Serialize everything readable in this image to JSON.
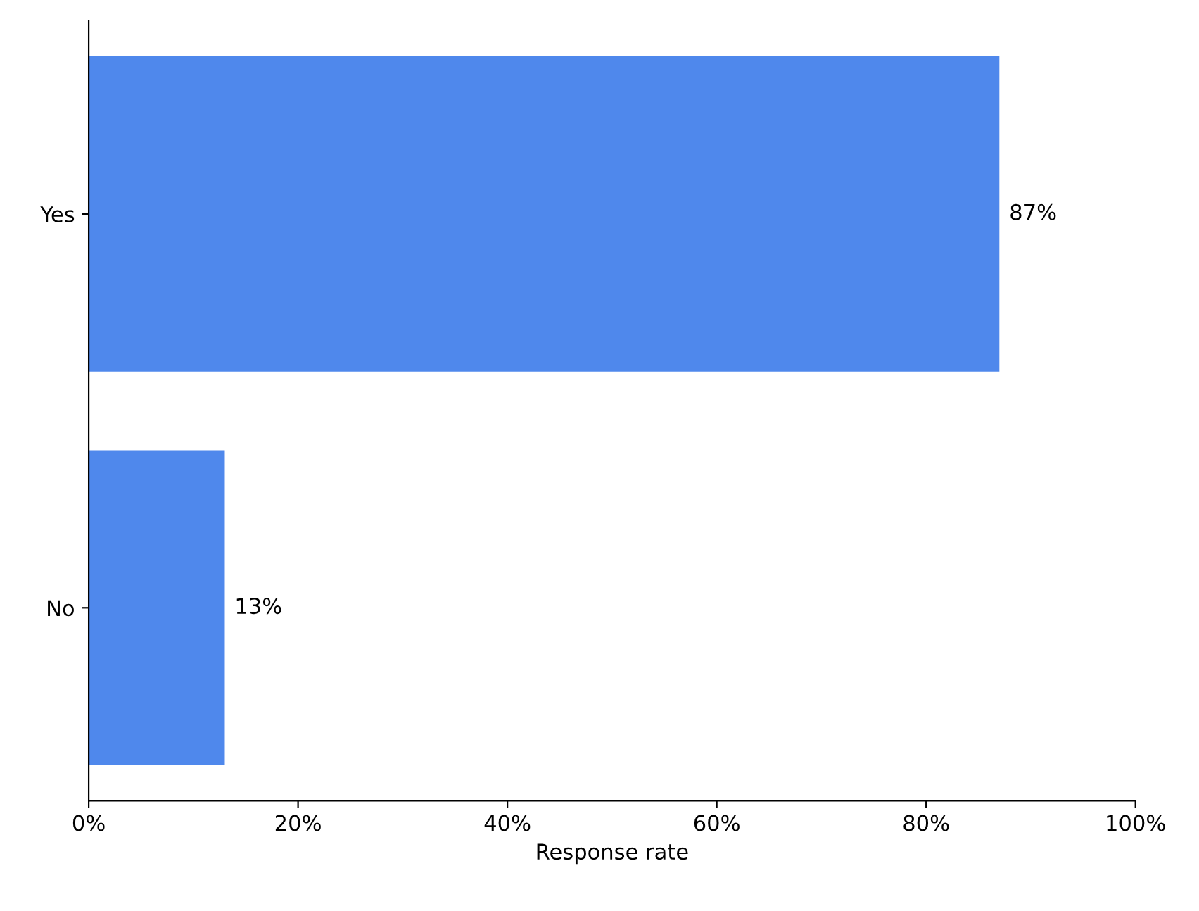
{
  "chart_data": {
    "type": "bar",
    "orientation": "horizontal",
    "categories": [
      "Yes",
      "No"
    ],
    "values": [
      87,
      13
    ],
    "color": "#4f88ec",
    "value_labels": [
      "87%",
      "13%"
    ],
    "xlabel": "Response rate",
    "xlim": [
      0,
      100
    ],
    "xticks": [
      {
        "value": 0,
        "label": "0%"
      },
      {
        "value": 20,
        "label": "20%"
      },
      {
        "value": 40,
        "label": "40%"
      },
      {
        "value": 60,
        "label": "60%"
      },
      {
        "value": 80,
        "label": "80%"
      },
      {
        "value": 100,
        "label": "100%"
      }
    ],
    "grid": false,
    "legend": false
  }
}
